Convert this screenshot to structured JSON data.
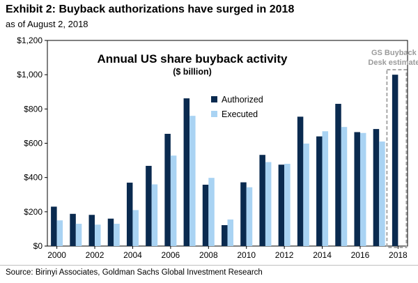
{
  "header": {
    "title": "Exhibit 2: Buyback authorizations have surged in 2018",
    "subtitle": "as of August 2, 2018"
  },
  "footer": {
    "source": "Source: Birinyi Associates, Goldman Sachs Global Investment Research"
  },
  "chart_data": {
    "type": "bar",
    "title": "Annual US share buyback activity",
    "subtitle": "($ billion)",
    "categories": [
      "2000",
      "2001",
      "2002",
      "2003",
      "2004",
      "2005",
      "2006",
      "2007",
      "2008",
      "2009",
      "2010",
      "2011",
      "2012",
      "2013",
      "2014",
      "2015",
      "2016",
      "2017",
      "2018"
    ],
    "x_tick_labels": [
      "2000",
      "2002",
      "2004",
      "2006",
      "2008",
      "2010",
      "2012",
      "2014",
      "2016",
      "2018"
    ],
    "series": [
      {
        "name": "Authorized",
        "color": "#0a2a4f",
        "values": [
          230,
          188,
          182,
          160,
          370,
          468,
          655,
          862,
          358,
          122,
          372,
          532,
          475,
          755,
          640,
          830,
          665,
          683,
          1000
        ]
      },
      {
        "name": "Executed",
        "color": "#a9d3f3",
        "values": [
          150,
          130,
          125,
          130,
          210,
          360,
          528,
          760,
          398,
          155,
          343,
          490,
          480,
          598,
          670,
          695,
          660,
          610,
          null
        ]
      }
    ],
    "ylim": [
      0,
      1200
    ],
    "y_ticks": [
      0,
      200,
      400,
      600,
      800,
      1000,
      1200
    ],
    "y_tick_labels": [
      "$0",
      "$200",
      "$400",
      "$600",
      "$800",
      "$1,000",
      "$1,200"
    ],
    "legend_position": "center",
    "grid": false,
    "annotation": {
      "text_line1": "GS Buyback",
      "text_line2": "Desk estimate",
      "category": "2018",
      "style": "dashed-box"
    }
  }
}
